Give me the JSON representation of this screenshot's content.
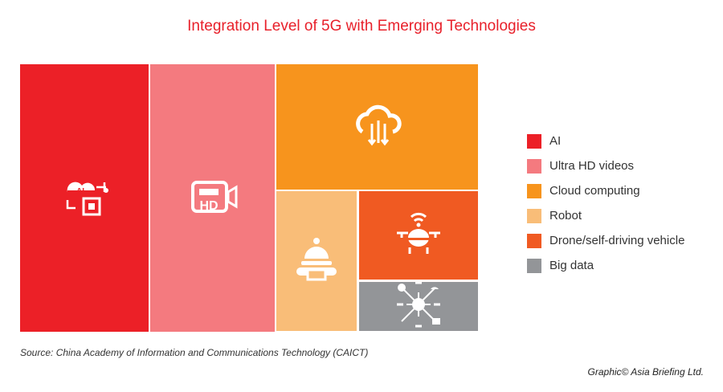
{
  "chart_data": {
    "type": "treemap",
    "title": "Integration Level of 5G with Emerging Technologies",
    "categories": [
      "AI",
      "Ultra HD videos",
      "Cloud computing",
      "Robot",
      "Drone/self-driving vehicle",
      "Big data"
    ],
    "values": [
      27.9,
      26.9,
      20.6,
      9.3,
      8.7,
      5.0
    ],
    "colors": [
      "#ec2027",
      "#f47a7f",
      "#f7941d",
      "#f9bd78",
      "#f05a22",
      "#939598"
    ],
    "icons": [
      "ai-chip-icon",
      "hd-video-camera-icon",
      "cloud-sync-icon",
      "robot-icon",
      "drone-icon",
      "big-data-network-icon"
    ],
    "legend_position": "right"
  },
  "source": "Source: China Academy of Information and Communications Technology (CAICT)",
  "credit": "Graphic© Asia Briefing Ltd."
}
